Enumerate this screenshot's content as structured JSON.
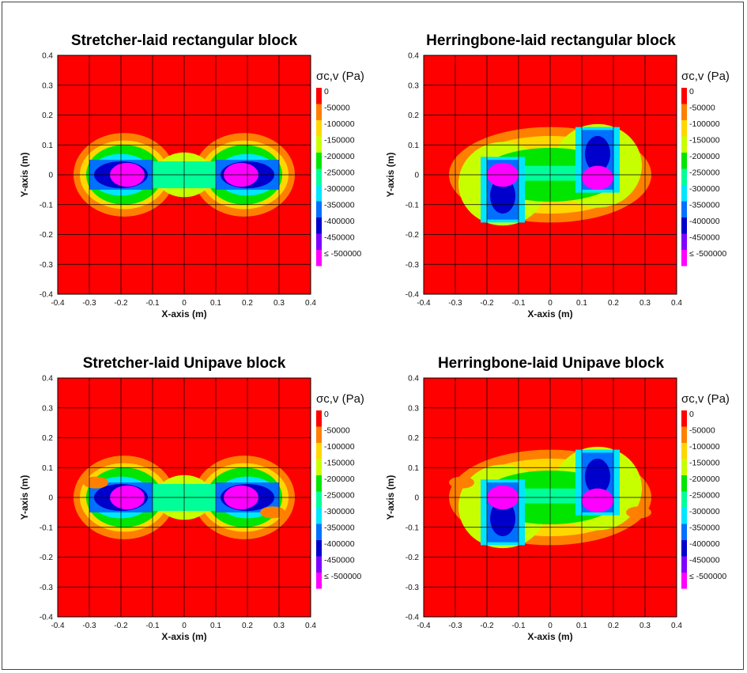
{
  "legend": {
    "title": "σc,v (Pa)",
    "levels": [
      {
        "label": "0",
        "color": "#ff0000"
      },
      {
        "label": "-50000",
        "color": "#ff8000"
      },
      {
        "label": "-100000",
        "color": "#ffd700"
      },
      {
        "label": "-150000",
        "color": "#c8ff00"
      },
      {
        "label": "-200000",
        "color": "#00e600"
      },
      {
        "label": "-250000",
        "color": "#00ff99"
      },
      {
        "label": "-300000",
        "color": "#00e6ff"
      },
      {
        "label": "-350000",
        "color": "#0070ff"
      },
      {
        "label": "-400000",
        "color": "#0000cc"
      },
      {
        "label": "-450000",
        "color": "#8000ff"
      },
      {
        "label": "≤ -500000",
        "color": "#ff00ff"
      }
    ]
  },
  "chart_data": [
    {
      "type": "heatmap",
      "title": "Stretcher-laid rectangular block",
      "xlabel": "X-axis (m)",
      "ylabel": "Y-axis (m)",
      "xlim": [
        -0.4,
        0.4
      ],
      "ylim": [
        -0.4,
        0.4
      ],
      "xticks": [
        "-0.4",
        "-0.3",
        "-0.2",
        "-0.1",
        "0",
        "0.1",
        "0.2",
        "0.3",
        "0.4"
      ],
      "yticks": [
        "0.4",
        "0.3",
        "0.2",
        "0.1",
        "0",
        "-0.1",
        "-0.2",
        "-0.3",
        "-0.4"
      ],
      "grid": true,
      "blocks": [
        {
          "x": [
            -0.3,
            -0.1
          ],
          "y": [
            -0.05,
            0.05
          ]
        },
        {
          "x": [
            0.1,
            0.3
          ],
          "y": [
            -0.05,
            0.05
          ]
        }
      ]
    },
    {
      "type": "heatmap",
      "title": "Herringbone-laid rectangular block",
      "xlabel": "X-axis (m)",
      "ylabel": "Y-axis (m)",
      "xlim": [
        -0.4,
        0.4
      ],
      "ylim": [
        -0.4,
        0.4
      ],
      "xticks": [
        "-0.4",
        "-0.3",
        "-0.2",
        "-0.1",
        "0",
        "0.1",
        "0.2",
        "0.3",
        "0.4"
      ],
      "yticks": [
        "0.4",
        "0.3",
        "0.2",
        "0.1",
        "0",
        "-0.1",
        "-0.2",
        "-0.3",
        "-0.4"
      ],
      "grid": true,
      "blocks": [
        {
          "x": [
            -0.2,
            -0.1
          ],
          "y": [
            -0.15,
            0.05
          ]
        },
        {
          "x": [
            0.1,
            0.2
          ],
          "y": [
            -0.05,
            0.15
          ]
        }
      ]
    },
    {
      "type": "heatmap",
      "title": "Stretcher-laid Unipave block",
      "xlabel": "X-axis (m)",
      "ylabel": "Y-axis (m)",
      "xlim": [
        -0.4,
        0.4
      ],
      "ylim": [
        -0.4,
        0.4
      ],
      "xticks": [
        "-0.4",
        "-0.3",
        "-0.2",
        "-0.1",
        "0",
        "0.1",
        "0.2",
        "0.3",
        "0.4"
      ],
      "yticks": [
        "0.4",
        "0.3",
        "0.2",
        "0.1",
        "0",
        "-0.1",
        "-0.2",
        "-0.3",
        "-0.4"
      ],
      "grid": true,
      "blocks": [
        {
          "x": [
            -0.3,
            -0.1
          ],
          "y": [
            -0.05,
            0.05
          ]
        },
        {
          "x": [
            0.1,
            0.3
          ],
          "y": [
            -0.05,
            0.05
          ]
        }
      ]
    },
    {
      "type": "heatmap",
      "title": "Herringbone-laid Unipave block",
      "xlabel": "X-axis (m)",
      "ylabel": "Y-axis (m)",
      "xlim": [
        -0.4,
        0.4
      ],
      "ylim": [
        -0.4,
        0.4
      ],
      "xticks": [
        "-0.4",
        "-0.3",
        "-0.2",
        "-0.1",
        "0",
        "0.1",
        "0.2",
        "0.3",
        "0.4"
      ],
      "yticks": [
        "0.4",
        "0.3",
        "0.2",
        "0.1",
        "0",
        "-0.1",
        "-0.2",
        "-0.3",
        "-0.4"
      ],
      "grid": true,
      "blocks": [
        {
          "x": [
            -0.2,
            -0.1
          ],
          "y": [
            -0.15,
            0.05
          ]
        },
        {
          "x": [
            0.1,
            0.2
          ],
          "y": [
            -0.05,
            0.15
          ]
        }
      ]
    }
  ]
}
